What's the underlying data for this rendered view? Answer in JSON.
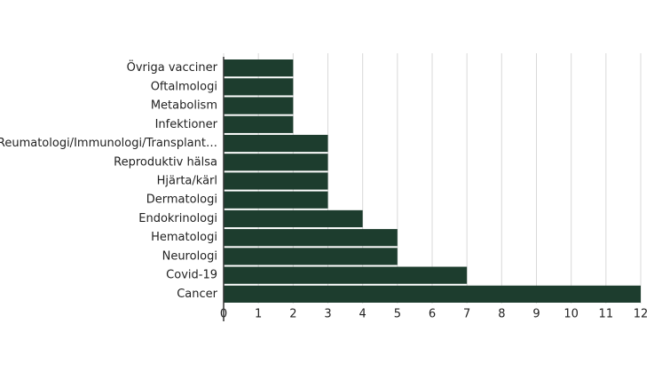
{
  "chart_data": {
    "type": "bar",
    "orientation": "horizontal",
    "categories": [
      "Övriga vacciner",
      "Oftalmologi",
      "Metabolism",
      "Infektioner",
      "Reumatologi/Immunologi/Transplant…",
      "Reproduktiv hälsa",
      "Hjärta/kärl",
      "Dermatologi",
      "Endokrinologi",
      "Hematologi",
      "Neurologi",
      "Covid-19",
      "Cancer"
    ],
    "values": [
      2,
      2,
      2,
      2,
      3,
      3,
      3,
      3,
      4,
      5,
      5,
      7,
      12
    ],
    "color": "#1d3d2e",
    "xlim": [
      0,
      12
    ],
    "xticks": [
      0,
      1,
      2,
      3,
      4,
      5,
      6,
      7,
      8,
      9,
      10,
      11,
      12
    ],
    "grid": true
  }
}
